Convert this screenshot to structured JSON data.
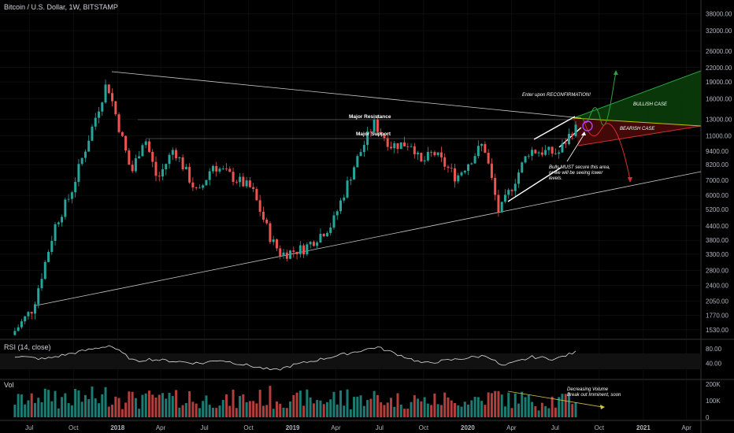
{
  "title": "Bitcoin / U.S. Dollar, 1W, BITSTAMP",
  "colors": {
    "background": "#000000",
    "up": "#26a69a",
    "down": "#ef5350",
    "grid": "#1a1a1a",
    "rsi_line": "#e0e0e0",
    "bull_zone": "#0b3d0b",
    "bear_zone": "#4a0a0a",
    "trend_line": "#c8c8c8",
    "vol_trend": "#d4c34a"
  },
  "x_axis": {
    "ticks": [
      "Jul",
      "Oct",
      "2018",
      "Apr",
      "Jul",
      "Oct",
      "2019",
      "Apr",
      "Jul",
      "Oct",
      "2020",
      "Apr",
      "Jul",
      "Oct",
      "2021",
      "Apr"
    ]
  },
  "price_axis": {
    "scale": "log",
    "ticks": [
      "38000.00",
      "32000.00",
      "26000.00",
      "22000.00",
      "19000.00",
      "16000.00",
      "13000.00",
      "11000.00",
      "9400.00",
      "8200.00",
      "7000.00",
      "6000.00",
      "5200.00",
      "4400.00",
      "3800.00",
      "3300.00",
      "2800.00",
      "2400.00",
      "2050.00",
      "1770.00",
      "1530.00"
    ]
  },
  "rsi": {
    "label": "RSI (14, close)",
    "ticks": [
      "80.00",
      "40.00"
    ]
  },
  "volume": {
    "label": "Vol",
    "ticks": [
      "200K",
      "100K",
      "0"
    ]
  },
  "annotations": {
    "major_resistance": "Major Resistance",
    "major_support": "Major Support",
    "enter": "Enter upon RECONFIRMATION!",
    "bullish": "BULLISH CASE",
    "bearish": "BEARISH CASE",
    "bulls_line1": "Bulls MUST secure this area,",
    "bulls_line2": "or we will be seeing lower",
    "bulls_line3": "levels.",
    "vol_line1": "Decreasing Volume",
    "vol_line2": "Break out Imminent, soon"
  },
  "chart_data": {
    "type": "candlestick",
    "title": "Bitcoin / U.S. Dollar, 1W, BITSTAMP",
    "y_scale": "log",
    "ylim": [
      1400,
      42000
    ],
    "anchors": [
      {
        "date": "2017-06-01",
        "price": 1450
      },
      {
        "date": "2017-07-15",
        "price": 1900
      },
      {
        "date": "2017-09-01",
        "price": 4500
      },
      {
        "date": "2017-10-01",
        "price": 6000
      },
      {
        "date": "2017-12-17",
        "price": 19000
      },
      {
        "date": "2018-02-06",
        "price": 7500
      },
      {
        "date": "2018-03-05",
        "price": 11000
      },
      {
        "date": "2018-04-01",
        "price": 7000
      },
      {
        "date": "2018-05-05",
        "price": 9700
      },
      {
        "date": "2018-06-25",
        "price": 6000
      },
      {
        "date": "2018-07-25",
        "price": 8200
      },
      {
        "date": "2018-10-15",
        "price": 6400
      },
      {
        "date": "2018-11-25",
        "price": 3800
      },
      {
        "date": "2018-12-15",
        "price": 3300
      },
      {
        "date": "2019-02-01",
        "price": 3500
      },
      {
        "date": "2019-04-01",
        "price": 4500
      },
      {
        "date": "2019-05-15",
        "price": 8000
      },
      {
        "date": "2019-06-26",
        "price": 12500
      },
      {
        "date": "2019-08-01",
        "price": 10000
      },
      {
        "date": "2019-09-15",
        "price": 10200
      },
      {
        "date": "2019-10-01",
        "price": 8200
      },
      {
        "date": "2019-10-28",
        "price": 9300
      },
      {
        "date": "2019-12-15",
        "price": 7200
      },
      {
        "date": "2020-02-10",
        "price": 10200
      },
      {
        "date": "2020-03-13",
        "price": 5000
      },
      {
        "date": "2020-04-15",
        "price": 7000
      },
      {
        "date": "2020-05-15",
        "price": 9500
      },
      {
        "date": "2020-07-15",
        "price": 9200
      },
      {
        "date": "2020-08-15",
        "price": 11800
      }
    ],
    "rsi_anchors": [
      {
        "date": "2017-06-01",
        "value": 60
      },
      {
        "date": "2017-08-01",
        "value": 52
      },
      {
        "date": "2017-12-17",
        "value": 90
      },
      {
        "date": "2018-02-06",
        "value": 45
      },
      {
        "date": "2018-03-05",
        "value": 52
      },
      {
        "date": "2018-06-25",
        "value": 40
      },
      {
        "date": "2018-08-01",
        "value": 50
      },
      {
        "date": "2018-11-25",
        "value": 20
      },
      {
        "date": "2019-01-01",
        "value": 35
      },
      {
        "date": "2019-06-26",
        "value": 85
      },
      {
        "date": "2019-10-01",
        "value": 40
      },
      {
        "date": "2020-02-10",
        "value": 62
      },
      {
        "date": "2020-03-13",
        "value": 32
      },
      {
        "date": "2020-05-15",
        "value": 58
      },
      {
        "date": "2020-07-01",
        "value": 52
      },
      {
        "date": "2020-08-15",
        "value": 72
      }
    ]
  }
}
